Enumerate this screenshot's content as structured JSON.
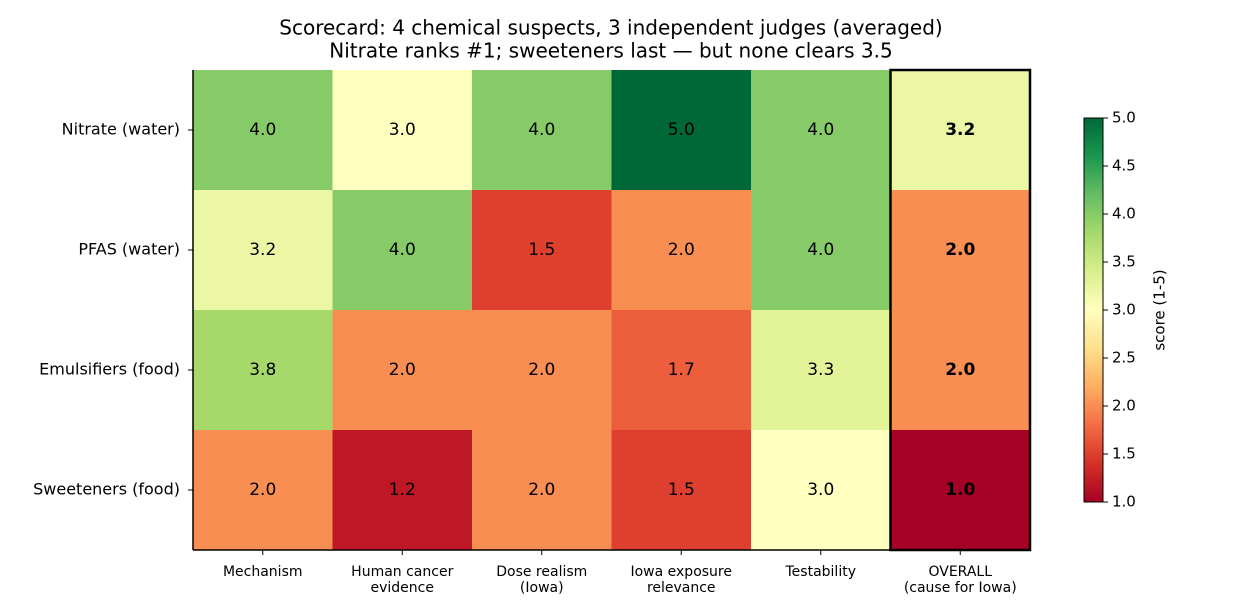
{
  "chart_data": {
    "type": "heatmap",
    "title": "Scorecard: 4 chemical suspects, 3 independent judges (averaged)",
    "subtitle": "Nitrate ranks #1; sweeteners last — but none clears 3.5",
    "columns": [
      "Mechanism",
      "Human cancer\nevidence",
      "Dose realism\n(Iowa)",
      "Iowa exposure\nrelevance",
      "Testability",
      "OVERALL\n(cause for Iowa)"
    ],
    "rows": [
      "Nitrate (water)",
      "PFAS (water)",
      "Emulsifiers (food)",
      "Sweeteners (food)"
    ],
    "values": [
      [
        4,
        3,
        4,
        5,
        4,
        3.2
      ],
      [
        3.2,
        4,
        1.5,
        2,
        4,
        2
      ],
      [
        3.8,
        2,
        2,
        1.7,
        3.3,
        2
      ],
      [
        2,
        1.2,
        2,
        1.5,
        3,
        1
      ]
    ],
    "value_labels": [
      [
        "4.0",
        "3.0",
        "4.0",
        "5.0",
        "4.0",
        "3.2"
      ],
      [
        "3.2",
        "4.0",
        "1.5",
        "2.0",
        "4.0",
        "2.0"
      ],
      [
        "3.8",
        "2.0",
        "2.0",
        "1.7",
        "3.3",
        "2.0"
      ],
      [
        "2.0",
        "1.2",
        "2.0",
        "1.5",
        "3.0",
        "1.0"
      ]
    ],
    "highlight_column": 5,
    "colormap": "RdYlGn",
    "clim": [
      1,
      5
    ],
    "colorbar_label": "score (1-5)",
    "colorbar_ticks": [
      {
        "value": 1,
        "label": "1.0"
      },
      1.5,
      {
        "value": 2,
        "label": "2.0"
      },
      2.5,
      {
        "value": 3,
        "label": "3.0"
      },
      3.5,
      {
        "value": 4,
        "label": "4.0"
      },
      4.5,
      {
        "value": 5,
        "label": "5.0"
      }
    ]
  }
}
